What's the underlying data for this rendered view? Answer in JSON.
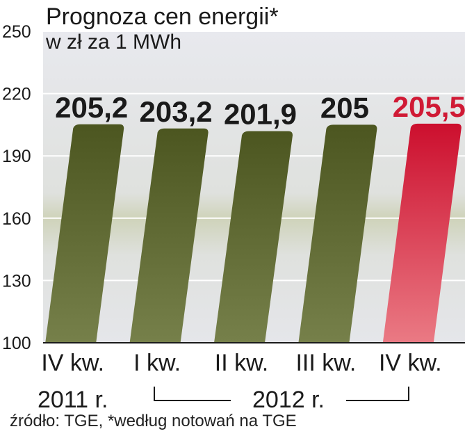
{
  "chart_data": {
    "type": "bar",
    "title": "Prognoza cen energii*",
    "subtitle": "w zł za 1 MWh",
    "categories": [
      {
        "line1": "IV kw.",
        "line2": "2011 r."
      },
      {
        "line1": "I kw.",
        "line2": ""
      },
      {
        "line1": "II kw.",
        "line2": ""
      },
      {
        "line1": "III kw.",
        "line2": ""
      },
      {
        "line1": "IV kw.",
        "line2": ""
      }
    ],
    "values": [
      205.2,
      203.2,
      201.9,
      205,
      205.5
    ],
    "value_labels": [
      "205,2",
      "203,2",
      "201,9",
      "205",
      "205,5"
    ],
    "group_label": "2012 r.",
    "ylim": [
      100,
      250
    ],
    "yticks": [
      "100",
      "130",
      "160",
      "190",
      "220",
      "250"
    ],
    "grid": true,
    "colors": {
      "bar": "#5f6a2e",
      "bar_highlight": "#d01a35",
      "label": "#1a1a1a",
      "label_highlight": "#d01a35",
      "background_top": "#e7e8ed",
      "background_band": "#cfd3ba"
    },
    "highlight_index": 4
  },
  "footer": "źródło: TGE, *według notowań na TGE"
}
